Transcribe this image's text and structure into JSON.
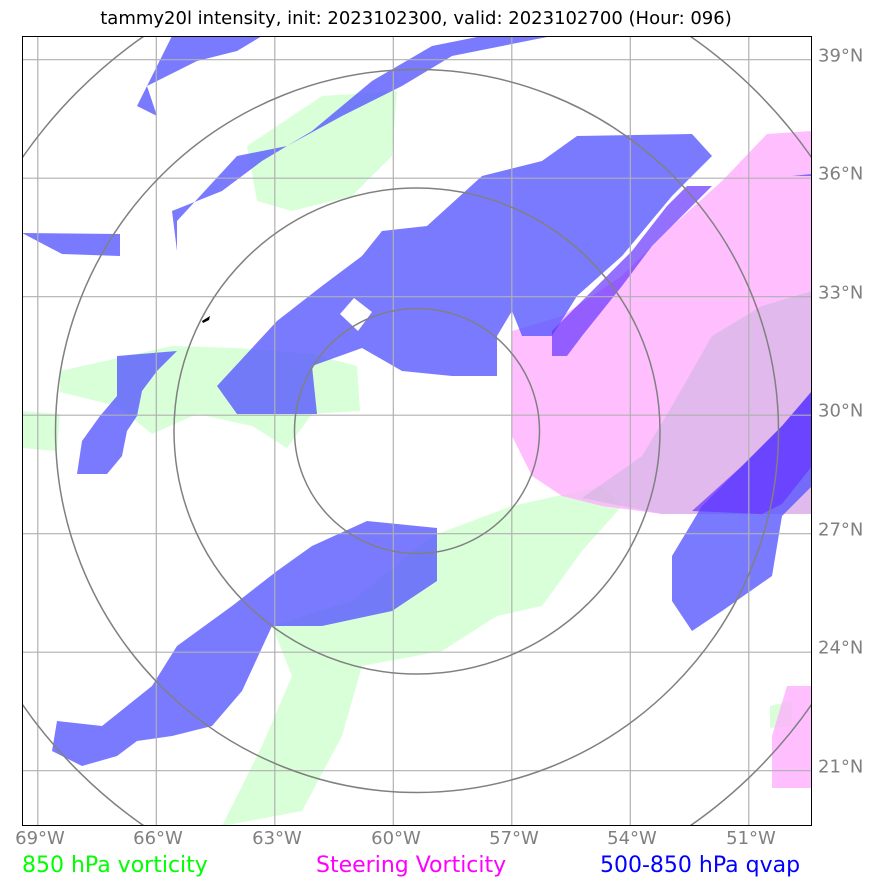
{
  "title": "tammy20l intensity, init: 2023102300, valid: 2023102700 (Hour: 096)",
  "lon_ticks": [
    "69°W",
    "66°W",
    "63°W",
    "60°W",
    "57°W",
    "54°W",
    "51°W"
  ],
  "lat_ticks": [
    "39°N",
    "36°N",
    "33°N",
    "30°N",
    "27°N",
    "24°N",
    "21°N"
  ],
  "legend": {
    "vorticity_850": {
      "label": "850 hPa vorticity",
      "color": "#00ff00"
    },
    "steering": {
      "label": "Steering Vorticity",
      "color": "#ff00ff"
    },
    "qvap": {
      "label": "500-850 hPa qvap",
      "color": "#0000ff"
    }
  },
  "map": {
    "extent": {
      "lon_min": -69.4,
      "lon_max": -49.4,
      "lat_min": 19.6,
      "lat_max": 39.6
    },
    "storm_center": {
      "lon": -59.4,
      "lat": 29.6
    },
    "range_rings": 4,
    "fill_colors": {
      "vorticity_850": "#ccffcc",
      "steering": "#ffaaff",
      "qvap": "#5555ff"
    },
    "grid_color": "#b0b0b0",
    "ring_color": "#808080"
  }
}
